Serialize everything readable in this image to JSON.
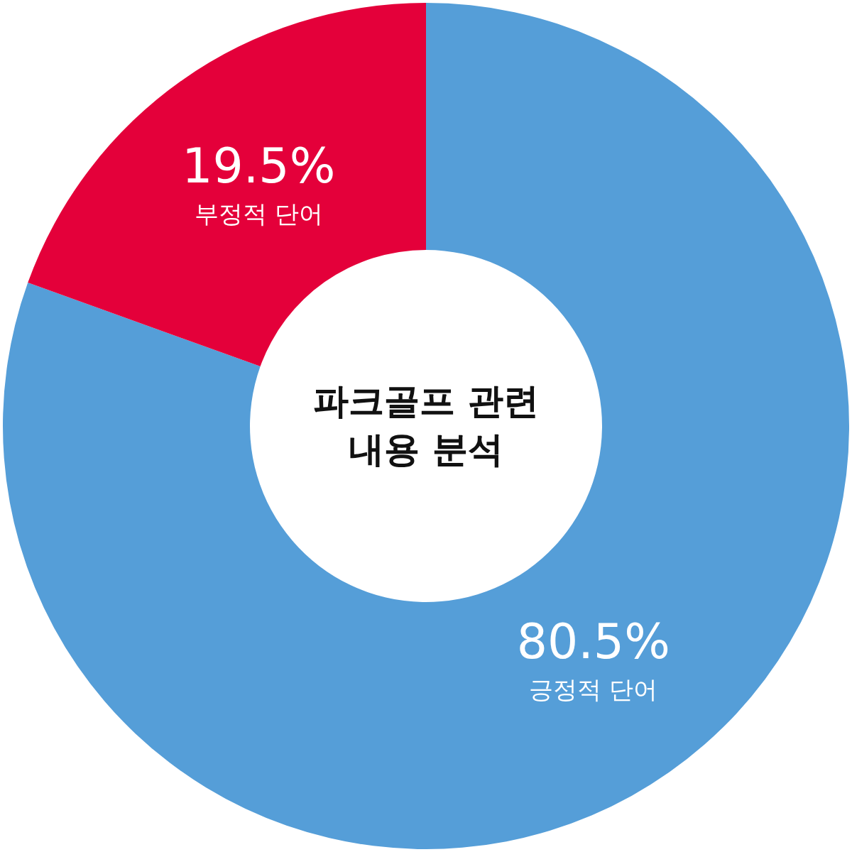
{
  "chart_data": {
    "type": "donut",
    "title": "파크골프 관련 내용 분석",
    "categories": [
      "긍정적 단어",
      "부정적 단어"
    ],
    "values": [
      80.5,
      19.5
    ],
    "value_labels": [
      "80.5%",
      "19.5%"
    ],
    "colors": [
      "#559ed8",
      "#e4003a"
    ]
  }
}
